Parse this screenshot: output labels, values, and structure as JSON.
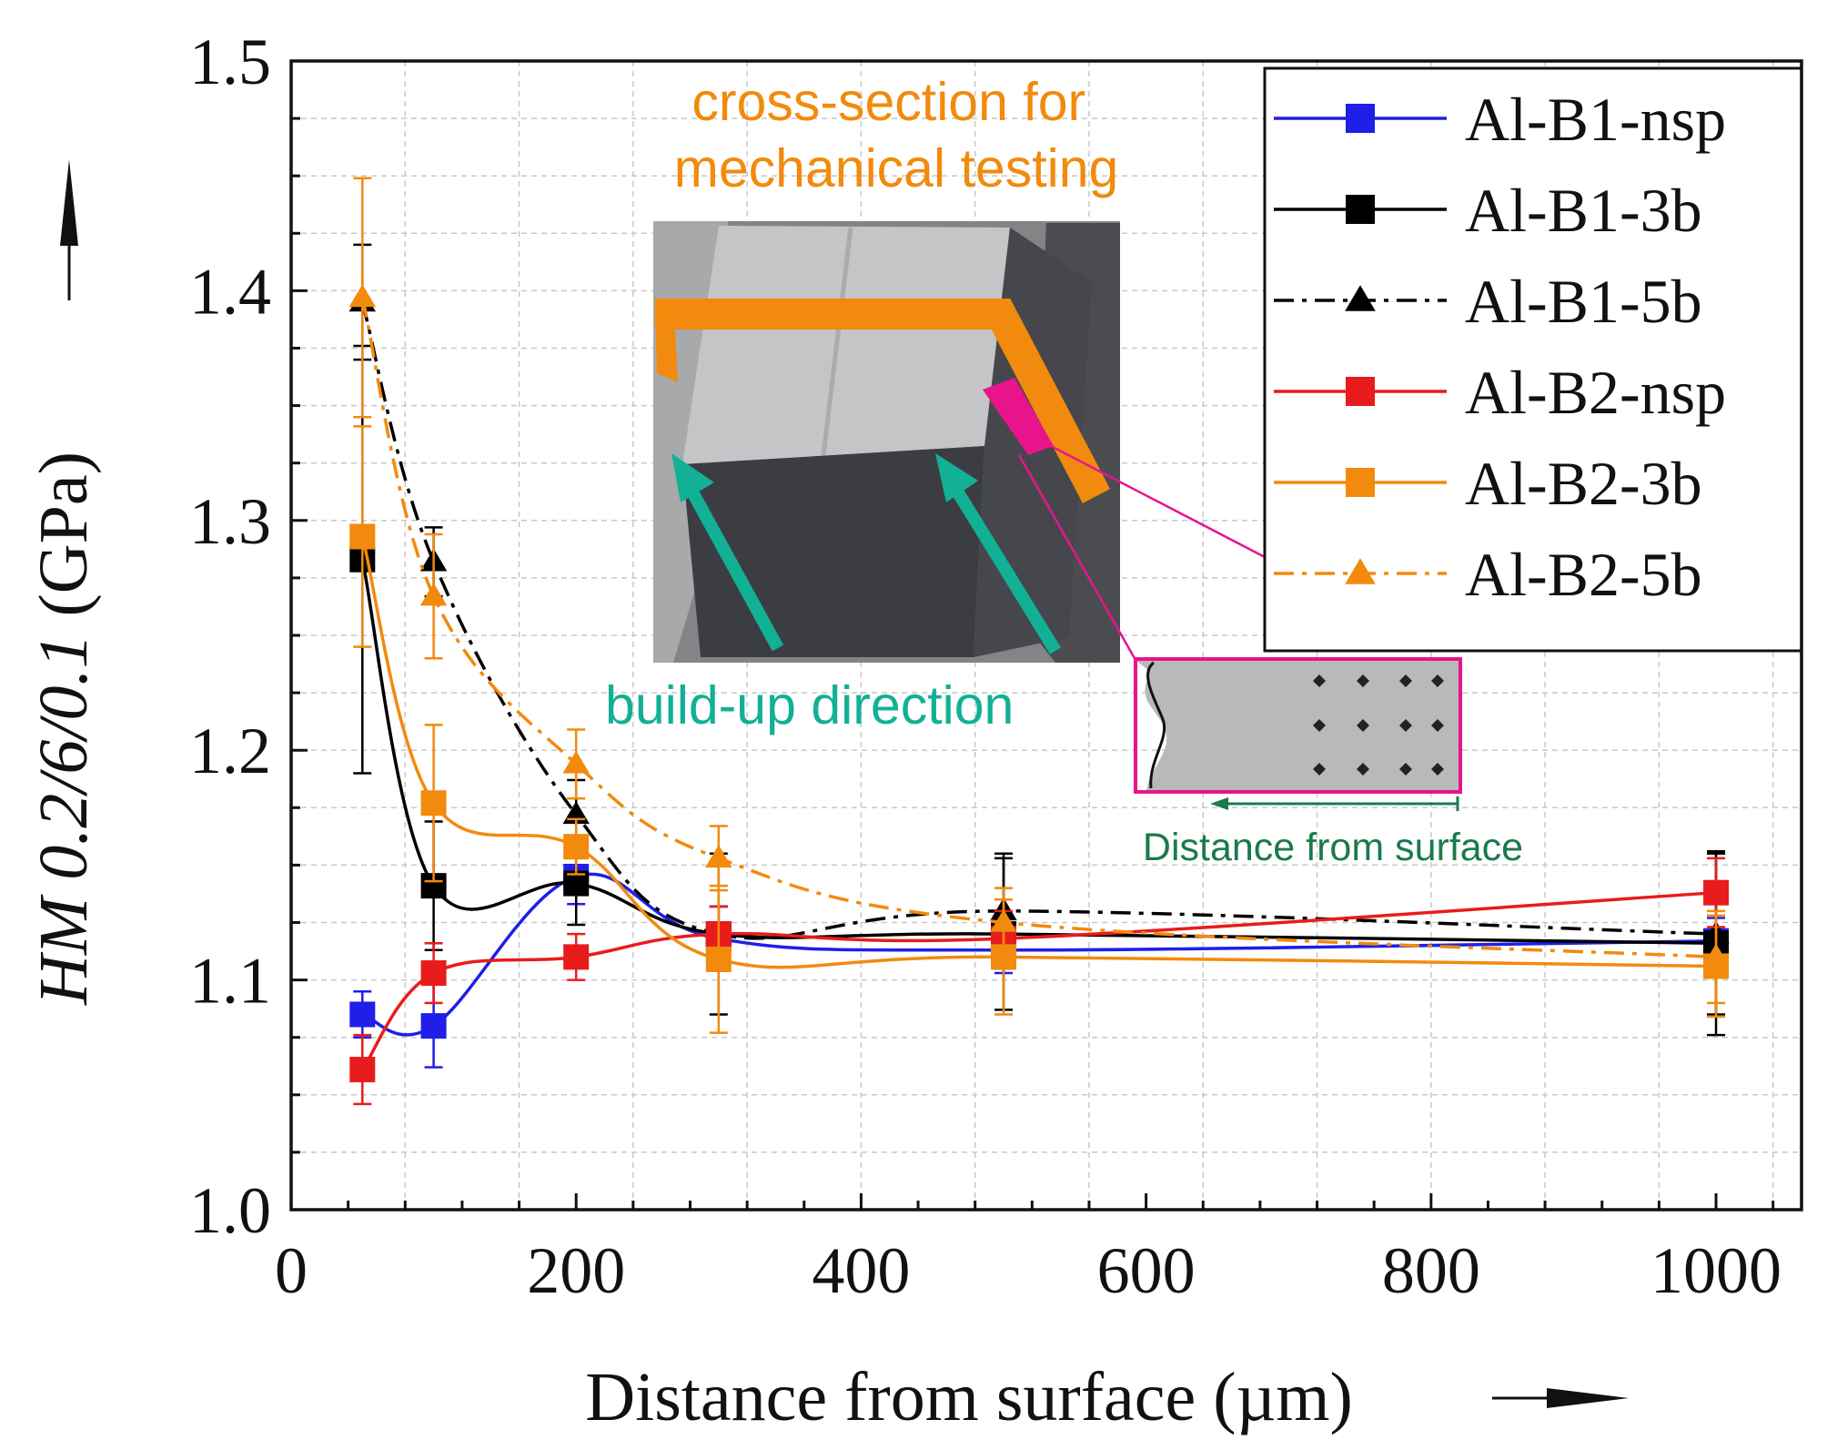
{
  "chart_data": {
    "type": "line",
    "title": "",
    "xlabel": "Distance from surface (µm)",
    "ylabel_italic": "HM 0.2/6/0.1",
    "ylabel_unit": " (GPa)",
    "xlim": [
      0,
      1060
    ],
    "ylim": [
      1.0,
      1.5
    ],
    "x_ticks": [
      0,
      200,
      400,
      600,
      800,
      1000
    ],
    "x_tick_labels": [
      "0",
      "200",
      "400",
      "600",
      "800",
      "1000"
    ],
    "y_ticks": [
      1.0,
      1.1,
      1.2,
      1.3,
      1.4,
      1.5
    ],
    "y_tick_labels": [
      "1.0",
      "1.1",
      "1.2",
      "1.3",
      "1.4",
      "1.5"
    ],
    "grid": true,
    "legend_position": "top-right",
    "x": [
      50,
      100,
      200,
      300,
      500,
      1000
    ],
    "series": [
      {
        "name": "Al-B1-nsp",
        "color": "#1f1fe8",
        "marker": "square",
        "dash": "solid",
        "values": [
          1.085,
          1.08,
          1.145,
          1.118,
          1.113,
          1.117
        ],
        "errors": [
          0.01,
          0.018,
          0.012,
          0.014,
          0.01,
          0.01
        ]
      },
      {
        "name": "Al-B1-3b",
        "color": "#000000",
        "marker": "square",
        "dash": "solid",
        "values": [
          1.283,
          1.141,
          1.142,
          1.12,
          1.12,
          1.116
        ],
        "errors": [
          0.093,
          0.028,
          0.018,
          0.035,
          0.033,
          0.04
        ]
      },
      {
        "name": "Al-B1-5b",
        "color": "#000000",
        "marker": "triangle",
        "dash": "dashdot",
        "values": [
          1.395,
          1.282,
          1.172,
          1.12,
          1.13,
          1.12
        ],
        "errors": [
          0.025,
          0.015,
          0.015,
          0.012,
          0.025,
          0.035
        ]
      },
      {
        "name": "Al-B2-nsp",
        "color": "#e81c1c",
        "marker": "square",
        "dash": "solid",
        "values": [
          1.061,
          1.103,
          1.11,
          1.12,
          1.118,
          1.138
        ],
        "errors": [
          0.015,
          0.013,
          0.01,
          0.012,
          0.012,
          0.015
        ]
      },
      {
        "name": "Al-B2-3b",
        "color": "#f28a0d",
        "marker": "square",
        "dash": "solid",
        "values": [
          1.293,
          1.177,
          1.158,
          1.109,
          1.11,
          1.106
        ],
        "errors": [
          0.048,
          0.034,
          0.012,
          0.032,
          0.025,
          0.022
        ]
      },
      {
        "name": "Al-B2-5b",
        "color": "#f28a0d",
        "marker": "triangle",
        "dash": "dashdot",
        "values": [
          1.397,
          1.267,
          1.194,
          1.153,
          1.125,
          1.11
        ],
        "errors": [
          0.052,
          0.027,
          0.015,
          0.014,
          0.015,
          0.02
        ]
      }
    ],
    "annotations": {
      "photo_caption": "cross-section for\nmechanical testing",
      "direction_label": "build-up direction",
      "inset_label": "Distance from surface"
    }
  }
}
